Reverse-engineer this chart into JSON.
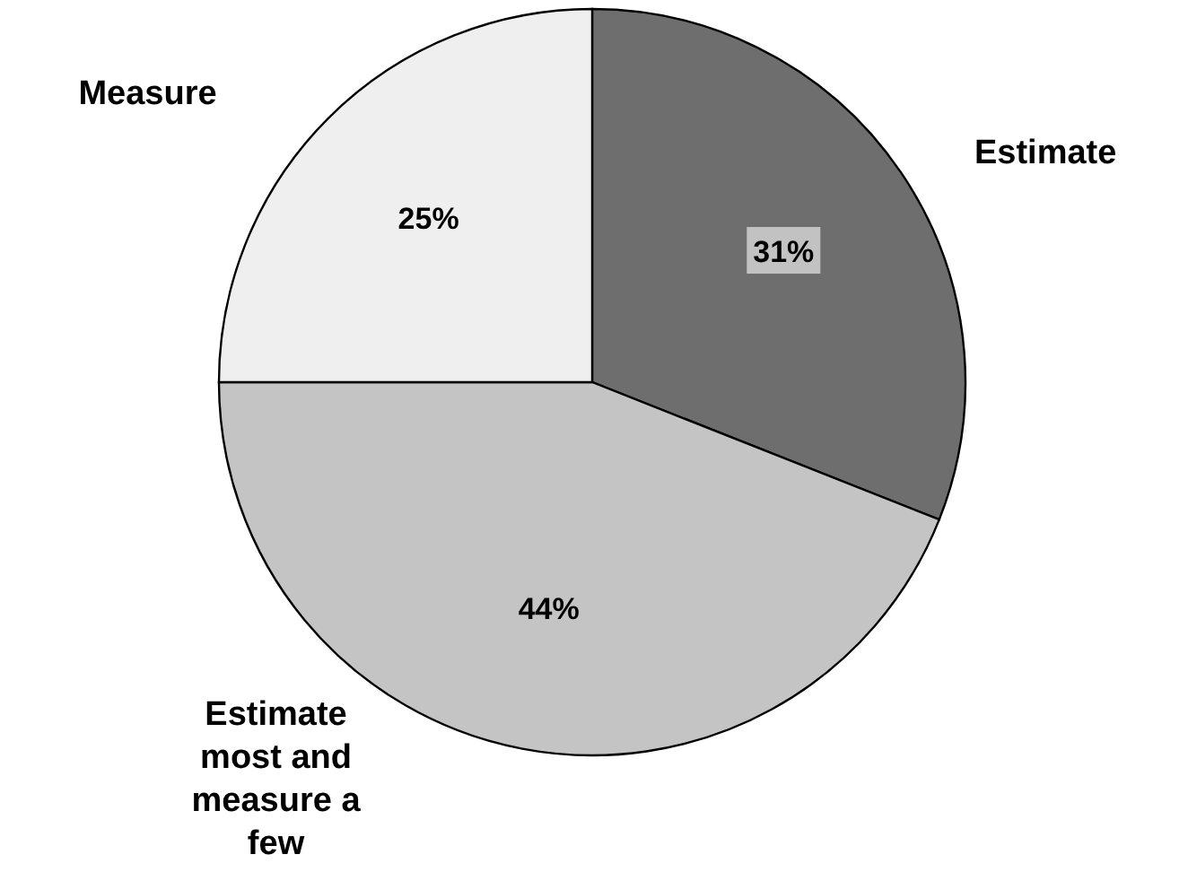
{
  "chart_data": {
    "type": "pie",
    "categories": [
      "Estimate",
      "Estimate most and measure a few",
      "Measure"
    ],
    "values": [
      31,
      44,
      25
    ],
    "colors": [
      "#6e6e6e",
      "#c4c4c4",
      "#efefef"
    ],
    "value_labels": [
      "31%",
      "44%",
      "25%"
    ]
  }
}
